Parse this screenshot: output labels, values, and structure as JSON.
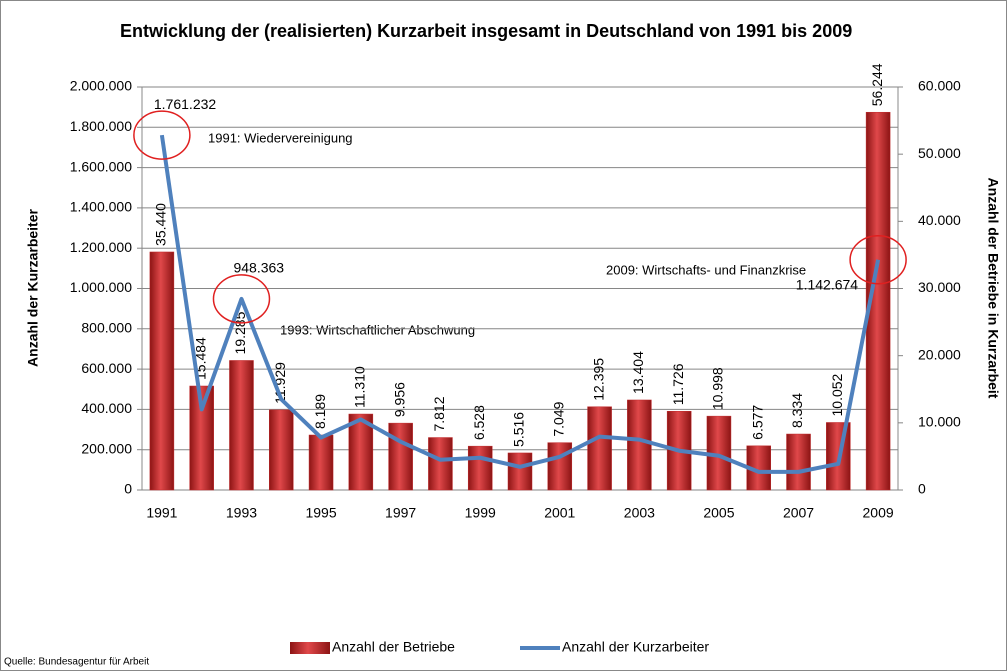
{
  "chart_data": {
    "type": "bar_line",
    "title": "Entwicklung der (realisierten)  Kurzarbeit insgesamt in Deutschland von 1991 bis 2009",
    "ylabel": "Anzahl der Kurzarbeiter",
    "y2label": "Anzahl der Betriebe in Kurzarbeit",
    "source": "Quelle: Bundesagentur für Arbeit",
    "annotations": [
      "1991: Wiedervereinigung",
      "1993: Wirtschaftlicher Abschwung",
      "2009: Wirtschafts- und Finanzkrise"
    ],
    "categories": [
      "1991",
      null,
      "1993",
      null,
      "1995",
      null,
      "1997",
      null,
      "1999",
      null,
      "2001",
      null,
      "2003",
      null,
      "2005",
      null,
      "2007",
      null,
      "2009"
    ],
    "series": [
      {
        "name": "Anzahl der Betriebe",
        "color": "#c0282a",
        "kind": "bar",
        "axis": "y2",
        "values": [
          35440,
          15484,
          19285,
          11929,
          8189,
          11310,
          9956,
          7812,
          6528,
          5516,
          7049,
          12395,
          13404,
          11726,
          10998,
          6577,
          8334,
          10052,
          56244
        ],
        "value_labels": [
          "35.440",
          "15.484",
          "19.285",
          "11.929",
          "8.189",
          "11.310",
          "9.956",
          "7.812",
          "6.528",
          "5.516",
          "7.049",
          "12.395",
          "13.404",
          "11.726",
          "10.998",
          "6.577",
          "8.334",
          "10.052",
          "56.244"
        ]
      },
      {
        "name": "Anzahl der Kurzarbeiter",
        "color": "#4f81bd",
        "kind": "line",
        "values": [
          1761232,
          400000,
          948363,
          450000,
          260000,
          350000,
          240000,
          150000,
          160000,
          115000,
          165000,
          265000,
          250000,
          195000,
          170000,
          90000,
          90000,
          130000,
          1142674
        ],
        "value_labels": [
          "1.761.232",
          null,
          "948.363",
          null,
          null,
          null,
          null,
          null,
          null,
          null,
          null,
          null,
          null,
          null,
          null,
          null,
          null,
          null,
          "1.142.674"
        ]
      }
    ],
    "ylim": [
      0,
      2000000
    ],
    "yticks": [
      0,
      {
        "value": 200000,
        "label": "200.000"
      },
      {
        "value": 400000,
        "label": "400.000"
      },
      {
        "value": 600000,
        "label": "600.000"
      },
      {
        "value": 800000,
        "label": "800.000"
      },
      {
        "value": 1000000,
        "label": "1.000.000"
      },
      {
        "value": 1200000,
        "label": "1.200.000"
      },
      {
        "value": 1400000,
        "label": "1.400.000"
      },
      {
        "value": 1600000,
        "label": "1.600.000"
      },
      {
        "value": 1800000,
        "label": "1.800.000"
      },
      {
        "value": 2000000,
        "label": "2.000.000"
      }
    ],
    "y2lim": [
      0,
      60000
    ],
    "y2ticks": [
      0,
      {
        "value": 10000,
        "label": "10.000"
      },
      {
        "value": 20000,
        "label": "20.000"
      },
      {
        "value": 30000,
        "label": "30.000"
      },
      {
        "value": 40000,
        "label": "40.000"
      },
      {
        "value": 50000,
        "label": "50.000"
      },
      {
        "value": 60000,
        "label": "60.000"
      }
    ],
    "grid": true,
    "legend": "bottom"
  }
}
